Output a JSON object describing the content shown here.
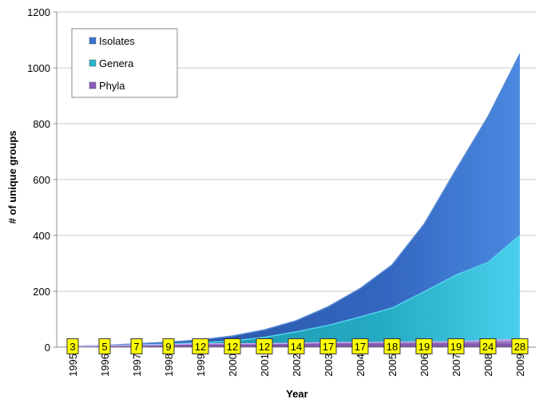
{
  "chart_data": {
    "type": "area",
    "xlabel": "Year",
    "ylabel": "# of unique groups",
    "ylim": [
      0,
      1200
    ],
    "yticks": [
      0,
      200,
      400,
      600,
      800,
      1000,
      1200
    ],
    "grid": "horizontal",
    "legend_position": "top-left",
    "x": [
      "1995",
      "1996",
      "1997",
      "1998",
      "1999",
      "2000",
      "2001",
      "2002",
      "2003",
      "2004",
      "2005",
      "2006",
      "2007",
      "2008",
      "2009"
    ],
    "series": [
      {
        "name": "Isolates",
        "color": "#3a74cf",
        "values": [
          3,
          6,
          12,
          18,
          26,
          40,
          62,
          95,
          145,
          210,
          295,
          440,
          635,
          825,
          1050
        ]
      },
      {
        "name": "Genera",
        "color": "#2bb6cf",
        "values": [
          3,
          5,
          8,
          11,
          16,
          22,
          35,
          55,
          78,
          108,
          140,
          198,
          258,
          303,
          400
        ]
      },
      {
        "name": "Phyla",
        "color": "#8a5bc0",
        "values": [
          3,
          5,
          7,
          9,
          12,
          12,
          12,
          14,
          17,
          17,
          18,
          19,
          19,
          24,
          28
        ]
      }
    ],
    "data_labels": {
      "series": "Phyla",
      "values": [
        3,
        5,
        7,
        9,
        12,
        12,
        12,
        14,
        17,
        17,
        18,
        19,
        19,
        24,
        28
      ]
    }
  }
}
